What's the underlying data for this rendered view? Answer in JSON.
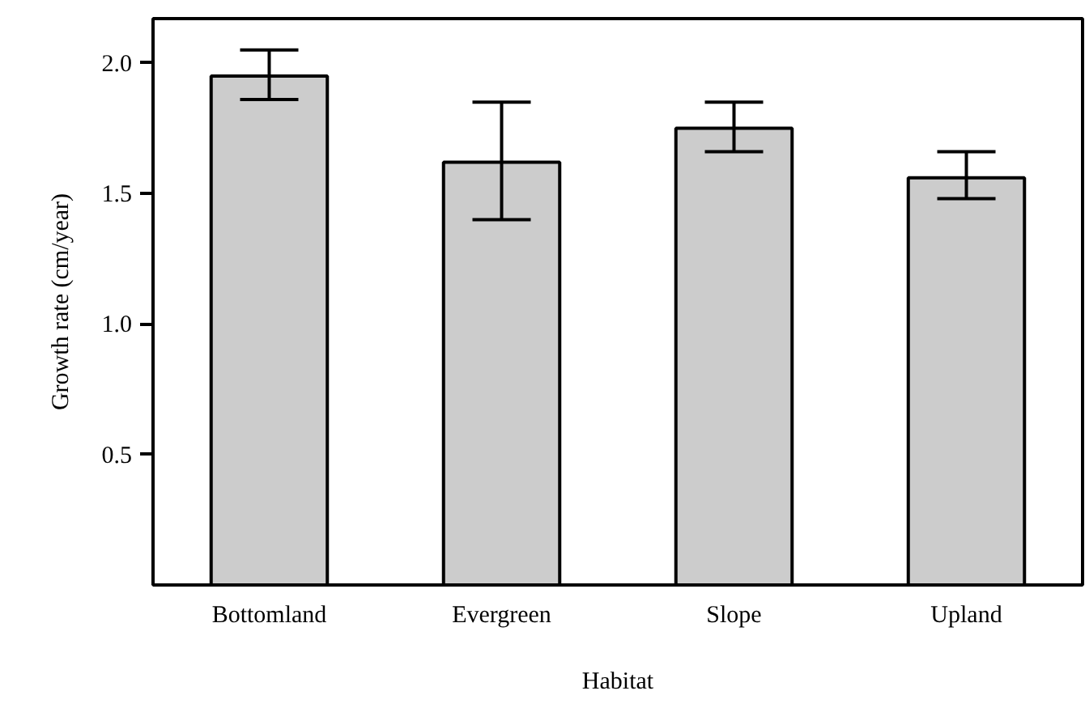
{
  "chart_data": {
    "type": "bar",
    "xlabel": "Habitat",
    "ylabel": "Growth rate (cm/year)",
    "categories": [
      "Bottomland",
      "Evergreen",
      "Slope",
      "Upland"
    ],
    "values": [
      1.95,
      1.62,
      1.75,
      1.56
    ],
    "errors": [
      [
        1.86,
        2.05
      ],
      [
        1.4,
        1.85
      ],
      [
        1.66,
        1.85
      ],
      [
        1.48,
        1.66
      ]
    ],
    "color": "#cccccc",
    "ylim": [
      0,
      2.17
    ],
    "yticks": [
      {
        "value": 0.5,
        "label": "0.5"
      },
      {
        "value": 1,
        "label": "1.0"
      },
      {
        "value": 1.5,
        "label": "1.5"
      },
      {
        "value": 2,
        "label": "2.0"
      }
    ],
    "grid": false
  }
}
